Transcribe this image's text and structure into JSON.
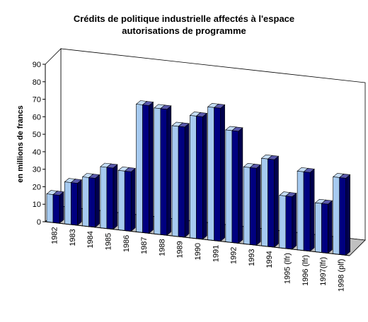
{
  "chart_data": {
    "type": "bar",
    "title_lines": [
      "Crédits de politique industrielle affectés à l'espace",
      "autorisations de programme"
    ],
    "xlabel": "",
    "ylabel": "en millions de francs",
    "ylim": [
      0,
      90
    ],
    "yticks": [
      "0",
      "10",
      "20",
      "30",
      "40",
      "50",
      "60",
      "70",
      "80",
      "90"
    ],
    "categories": [
      "1982",
      "1983",
      "1984",
      "1985",
      "1986",
      "1987",
      "1988",
      "1989",
      "1990",
      "1991",
      "1992",
      "1993",
      "1994",
      "1995 (lfr)",
      "1996 (lfr)",
      "1997(lfr)",
      "1998 (plf)"
    ],
    "series": [
      {
        "color_front": "#a6caf0",
        "values": [
          16,
          24,
          28,
          35,
          34,
          73,
          72,
          63,
          70,
          76,
          64,
          44,
          50,
          30,
          45,
          28,
          44
        ]
      },
      {
        "color_front": "#000080",
        "values": [
          16,
          24,
          28,
          35,
          34,
          73,
          72,
          63,
          70,
          76,
          64,
          44,
          50,
          30,
          45,
          28,
          44
        ]
      }
    ],
    "grid": false,
    "legend": "none",
    "colors": {
      "wall": "#ffffff",
      "floor": "#c0c0c0",
      "axis": "#000000",
      "edge": "#000000"
    }
  }
}
